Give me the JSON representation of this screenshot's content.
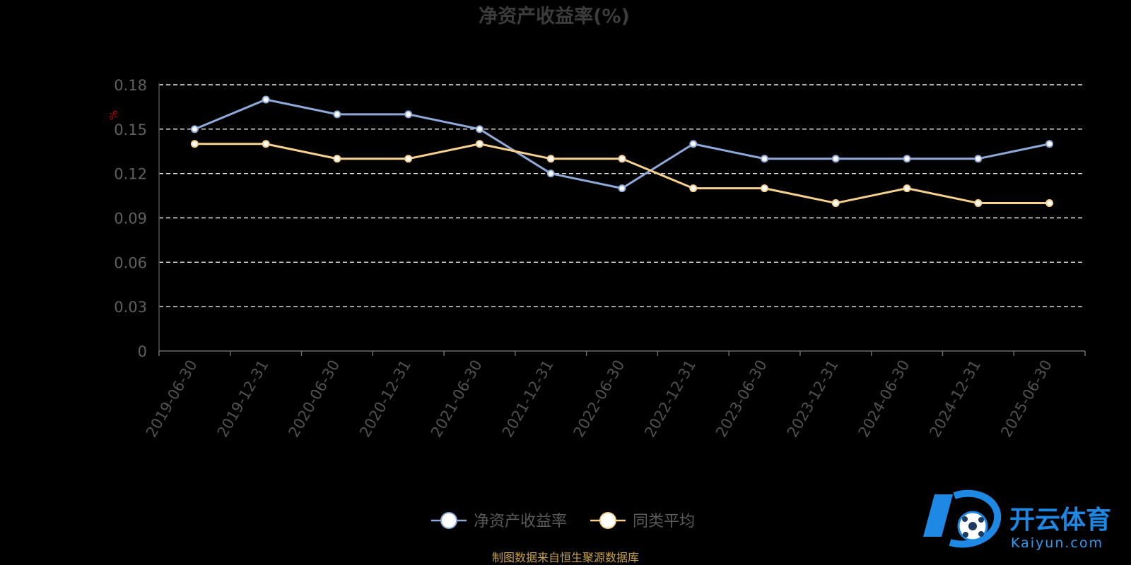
{
  "chart_data": {
    "type": "line",
    "title": "净资产收益率(%)",
    "ylabel": "%",
    "xlabel": "",
    "ylim": [
      0,
      0.18
    ],
    "yticks": [
      "0",
      "0.03",
      "0.06",
      "0.09",
      "0.12",
      "0.15",
      "0.18"
    ],
    "categories": [
      "2019-06-30",
      "2019-12-31",
      "2020-06-30",
      "2020-12-31",
      "2021-06-30",
      "2021-12-31",
      "2022-06-30",
      "2022-12-31",
      "2023-06-30",
      "2023-12-31",
      "2024-06-30",
      "2024-12-31",
      "2025-06-30"
    ],
    "series": [
      {
        "name": "净资产收益率",
        "color": "#8fa9d8",
        "values": [
          0.15,
          0.17,
          0.16,
          0.16,
          0.15,
          0.12,
          0.11,
          0.14,
          0.13,
          0.13,
          0.13,
          0.13,
          0.14
        ]
      },
      {
        "name": "同类平均",
        "color": "#f6d08e",
        "values": [
          0.14,
          0.14,
          0.13,
          0.13,
          0.14,
          0.13,
          0.13,
          0.11,
          0.11,
          0.1,
          0.11,
          0.1,
          0.1
        ]
      }
    ],
    "grid": true,
    "legend_position": "bottom-center"
  },
  "source_note": "制图数据来自恒生聚源数据库",
  "watermark": {
    "cn": "开云体育",
    "en": "Kaiyun.com"
  }
}
